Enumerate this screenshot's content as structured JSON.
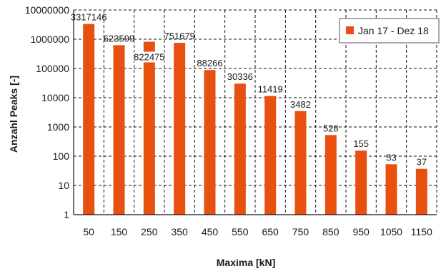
{
  "chart_data": {
    "type": "bar",
    "title": "",
    "xlabel": "Maxima [kN]",
    "ylabel": "Anzahl Peaks [-]",
    "yscale": "log",
    "ylim": [
      1,
      10000000
    ],
    "y_ticks": [
      "1",
      "10",
      "100",
      "1000",
      "10000",
      "100000",
      "1000000",
      "10000000"
    ],
    "grid": true,
    "legend_position": "top-right",
    "categories": [
      "50",
      "150",
      "250",
      "350",
      "450",
      "550",
      "650",
      "750",
      "850",
      "950",
      "1050",
      "1150"
    ],
    "series": [
      {
        "name": "Jan 17 - Dez 18",
        "color": "#e8500f",
        "values": [
          3317146,
          623599,
          822475,
          751679,
          88266,
          30336,
          11419,
          3482,
          528,
          155,
          53,
          37
        ],
        "value_labels": [
          "3317146",
          "623599",
          "822475",
          "751679",
          "88266",
          "30336",
          "11419",
          "3482",
          "528",
          "155",
          "53",
          "37"
        ]
      }
    ]
  }
}
